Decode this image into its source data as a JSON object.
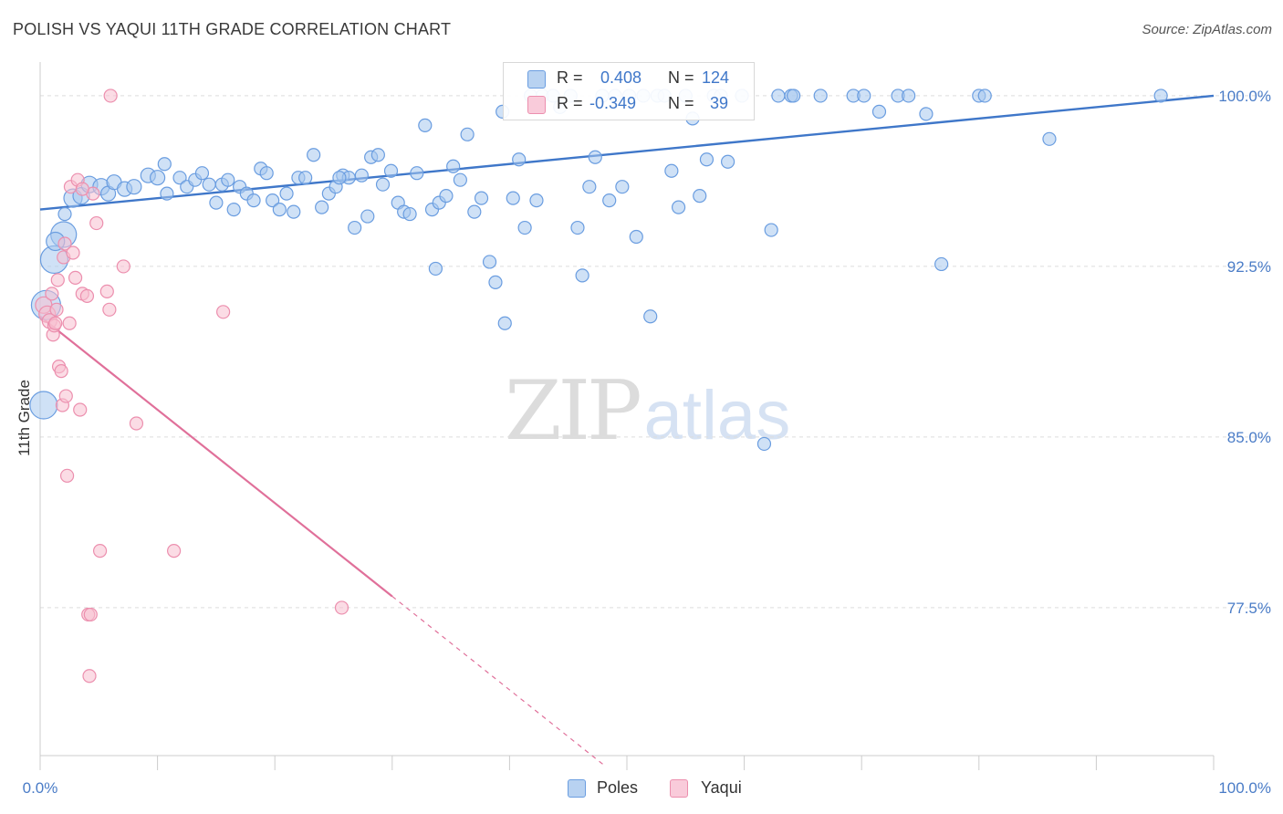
{
  "header": {
    "title": "POLISH VS YAQUI 11TH GRADE CORRELATION CHART",
    "source": "Source: ZipAtlas.com"
  },
  "legend": {
    "poles": {
      "r_label": "R =",
      "r_value": "0.408",
      "n_label": "N =",
      "n_value": "124"
    },
    "yaqui": {
      "r_label": "R =",
      "r_value": "-0.349",
      "n_label": "N =",
      "n_value": "39"
    }
  },
  "bottom_legend": {
    "poles_label": "Poles",
    "yaqui_label": "Yaqui"
  },
  "watermark": {
    "zip": "ZIP",
    "atlas": "atlas"
  },
  "colors": {
    "poles_fill": "#a8c8ee",
    "poles_stroke": "#6a9de0",
    "poles_line": "#3f77c9",
    "yaqui_fill": "#f7bfd0",
    "yaqui_stroke": "#ec8fae",
    "yaqui_line": "#e0709a",
    "grid": "#dddddd",
    "tick_text": "#4a7cc7"
  },
  "chart_data": {
    "type": "scatter",
    "title": "POLISH VS YAQUI 11TH GRADE CORRELATION CHART",
    "xlabel": "",
    "ylabel": "11th Grade",
    "xlim": [
      0,
      100
    ],
    "ylim": [
      71.0,
      101.0
    ],
    "x_tick_labels": [
      "0.0%",
      "100.0%"
    ],
    "y_ticks": [
      77.5,
      85.0,
      92.5,
      100.0
    ],
    "y_tick_labels": [
      "77.5%",
      "85.0%",
      "92.5%",
      "100.0%"
    ],
    "grid": "horizontal dashed",
    "legend_position": "top-center",
    "series": [
      {
        "name": "Poles",
        "trendline": {
          "x": [
            0,
            100
          ],
          "y": [
            95.0,
            100.0
          ]
        },
        "points": [
          [
            0.3,
            86.4,
            1.5
          ],
          [
            0.5,
            90.8,
            1.6
          ],
          [
            1.2,
            92.8,
            1.5
          ],
          [
            2.0,
            93.9,
            1.4
          ],
          [
            1.3,
            93.6,
            1.0
          ],
          [
            2.8,
            95.5,
            1.0
          ],
          [
            3.5,
            95.6,
            0.9
          ],
          [
            4.2,
            96.1,
            0.9
          ],
          [
            5.2,
            96.0,
            0.9
          ],
          [
            5.8,
            95.7,
            0.8
          ],
          [
            6.3,
            96.2,
            0.8
          ],
          [
            7.2,
            95.9,
            0.8
          ],
          [
            8.0,
            96.0,
            0.8
          ],
          [
            9.2,
            96.5,
            0.8
          ],
          [
            10.0,
            96.4,
            0.8
          ],
          [
            10.6,
            97.0,
            0.7
          ],
          [
            10.8,
            95.7,
            0.7
          ],
          [
            11.9,
            96.4,
            0.7
          ],
          [
            12.5,
            96.0,
            0.7
          ],
          [
            13.2,
            96.3,
            0.7
          ],
          [
            13.8,
            96.6,
            0.7
          ],
          [
            14.4,
            96.1,
            0.7
          ],
          [
            15.0,
            95.3,
            0.7
          ],
          [
            15.5,
            96.1,
            0.7
          ],
          [
            16.0,
            96.3,
            0.7
          ],
          [
            16.5,
            95.0,
            0.7
          ],
          [
            17.0,
            96.0,
            0.7
          ],
          [
            17.6,
            95.7,
            0.7
          ],
          [
            18.2,
            95.4,
            0.7
          ],
          [
            18.8,
            96.8,
            0.7
          ],
          [
            19.3,
            96.6,
            0.7
          ],
          [
            19.8,
            95.4,
            0.7
          ],
          [
            20.4,
            95.0,
            0.7
          ],
          [
            21.0,
            95.7,
            0.7
          ],
          [
            21.6,
            94.9,
            0.7
          ],
          [
            22.0,
            96.4,
            0.7
          ],
          [
            22.6,
            96.4,
            0.7
          ],
          [
            23.3,
            97.4,
            0.7
          ],
          [
            24.0,
            95.1,
            0.7
          ],
          [
            24.6,
            95.7,
            0.7
          ],
          [
            25.2,
            96.0,
            0.7
          ],
          [
            25.8,
            96.5,
            0.7
          ],
          [
            26.3,
            96.4,
            0.7
          ],
          [
            26.8,
            94.2,
            0.7
          ],
          [
            27.4,
            96.5,
            0.7
          ],
          [
            27.9,
            94.7,
            0.7
          ],
          [
            28.2,
            97.3,
            0.7
          ],
          [
            28.8,
            97.4,
            0.7
          ],
          [
            29.2,
            96.1,
            0.7
          ],
          [
            29.9,
            96.7,
            0.7
          ],
          [
            30.5,
            95.3,
            0.7
          ],
          [
            31.0,
            94.9,
            0.7
          ],
          [
            31.5,
            94.8,
            0.7
          ],
          [
            32.1,
            96.6,
            0.7
          ],
          [
            32.8,
            98.7,
            0.7
          ],
          [
            33.4,
            95.0,
            0.7
          ],
          [
            34.0,
            95.3,
            0.7
          ],
          [
            34.6,
            95.6,
            0.7
          ],
          [
            35.2,
            96.9,
            0.7
          ],
          [
            35.8,
            96.3,
            0.7
          ],
          [
            36.4,
            98.3,
            0.7
          ],
          [
            37.0,
            94.9,
            0.7
          ],
          [
            37.6,
            95.5,
            0.7
          ],
          [
            38.3,
            92.7,
            0.7
          ],
          [
            38.8,
            91.8,
            0.7
          ],
          [
            39.4,
            99.3,
            0.7
          ],
          [
            39.6,
            90.0,
            0.7
          ],
          [
            40.3,
            95.5,
            0.7
          ],
          [
            40.8,
            97.2,
            0.7
          ],
          [
            41.3,
            94.2,
            0.7
          ],
          [
            41.8,
            100.0,
            0.7
          ],
          [
            42.3,
            95.4,
            0.7
          ],
          [
            42.8,
            100.0,
            0.7
          ],
          [
            43.7,
            100.0,
            0.7
          ],
          [
            44.3,
            99.5,
            0.7
          ],
          [
            45.2,
            100.0,
            0.7
          ],
          [
            45.8,
            94.2,
            0.7
          ],
          [
            46.2,
            92.1,
            0.7
          ],
          [
            46.8,
            96.0,
            0.7
          ],
          [
            47.3,
            97.3,
            0.7
          ],
          [
            47.9,
            100.0,
            0.7
          ],
          [
            48.5,
            95.4,
            0.7
          ],
          [
            49.0,
            100.0,
            0.7
          ],
          [
            49.6,
            96.0,
            0.7
          ],
          [
            50.2,
            100.0,
            0.7
          ],
          [
            50.8,
            93.8,
            0.7
          ],
          [
            51.4,
            100.0,
            0.7
          ],
          [
            52.0,
            90.3,
            0.7
          ],
          [
            52.6,
            100.0,
            0.7
          ],
          [
            53.2,
            100.0,
            0.7
          ],
          [
            53.8,
            96.7,
            0.7
          ],
          [
            54.4,
            95.1,
            0.7
          ],
          [
            55.0,
            100.0,
            0.7
          ],
          [
            55.6,
            99.0,
            0.7
          ],
          [
            56.2,
            95.6,
            0.7
          ],
          [
            56.8,
            97.2,
            0.7
          ],
          [
            57.4,
            100.0,
            0.7
          ],
          [
            58.0,
            100.0,
            0.7
          ],
          [
            58.6,
            97.1,
            0.7
          ],
          [
            59.8,
            100.0,
            0.7
          ],
          [
            61.7,
            84.7,
            0.7
          ],
          [
            62.3,
            94.1,
            0.7
          ],
          [
            62.9,
            100.0,
            0.7
          ],
          [
            64.0,
            100.0,
            0.7
          ],
          [
            64.2,
            100.0,
            0.7
          ],
          [
            66.5,
            100.0,
            0.7
          ],
          [
            69.3,
            100.0,
            0.7
          ],
          [
            70.2,
            100.0,
            0.7
          ],
          [
            71.5,
            99.3,
            0.7
          ],
          [
            73.1,
            100.0,
            0.7
          ],
          [
            74.0,
            100.0,
            0.7
          ],
          [
            75.5,
            99.2,
            0.7
          ],
          [
            80.0,
            100.0,
            0.7
          ],
          [
            80.5,
            100.0,
            0.7
          ],
          [
            86.0,
            98.1,
            0.7
          ],
          [
            95.5,
            100.0,
            0.7
          ],
          [
            76.8,
            92.6,
            0.7
          ],
          [
            25.5,
            96.4,
            0.7
          ],
          [
            33.7,
            92.4,
            0.7
          ],
          [
            2.1,
            94.8,
            0.7
          ]
        ]
      },
      {
        "name": "Yaqui",
        "trendline": {
          "x": [
            0,
            30,
            48
          ],
          "y": [
            90.3,
            78.0,
            70.6
          ]
        },
        "points": [
          [
            0.3,
            90.8,
            0.9
          ],
          [
            0.6,
            90.4,
            0.9
          ],
          [
            0.8,
            90.1,
            0.8
          ],
          [
            1.0,
            91.3,
            0.7
          ],
          [
            1.1,
            89.5,
            0.7
          ],
          [
            1.2,
            89.9,
            0.7
          ],
          [
            1.4,
            90.6,
            0.7
          ],
          [
            1.5,
            91.9,
            0.7
          ],
          [
            1.6,
            88.1,
            0.7
          ],
          [
            1.8,
            87.9,
            0.7
          ],
          [
            1.9,
            86.4,
            0.7
          ],
          [
            2.0,
            92.9,
            0.7
          ],
          [
            2.1,
            93.5,
            0.7
          ],
          [
            2.2,
            86.8,
            0.7
          ],
          [
            2.3,
            83.3,
            0.7
          ],
          [
            2.5,
            90.0,
            0.7
          ],
          [
            2.6,
            96.0,
            0.7
          ],
          [
            2.8,
            93.1,
            0.7
          ],
          [
            3.0,
            92.0,
            0.7
          ],
          [
            3.2,
            96.3,
            0.7
          ],
          [
            3.4,
            86.2,
            0.7
          ],
          [
            3.6,
            91.3,
            0.7
          ],
          [
            4.0,
            91.2,
            0.7
          ],
          [
            4.1,
            77.2,
            0.7
          ],
          [
            4.2,
            74.5,
            0.7
          ],
          [
            4.3,
            77.2,
            0.7
          ],
          [
            4.5,
            95.7,
            0.7
          ],
          [
            4.8,
            94.4,
            0.7
          ],
          [
            5.1,
            80.0,
            0.7
          ],
          [
            5.7,
            91.4,
            0.7
          ],
          [
            5.9,
            90.6,
            0.7
          ],
          [
            6.0,
            100.0,
            0.7
          ],
          [
            7.1,
            92.5,
            0.7
          ],
          [
            8.2,
            85.6,
            0.7
          ],
          [
            11.4,
            80.0,
            0.7
          ],
          [
            15.6,
            90.5,
            0.7
          ],
          [
            25.7,
            77.5,
            0.7
          ],
          [
            3.6,
            95.9,
            0.7
          ],
          [
            1.3,
            90.0,
            0.7
          ]
        ]
      }
    ]
  }
}
